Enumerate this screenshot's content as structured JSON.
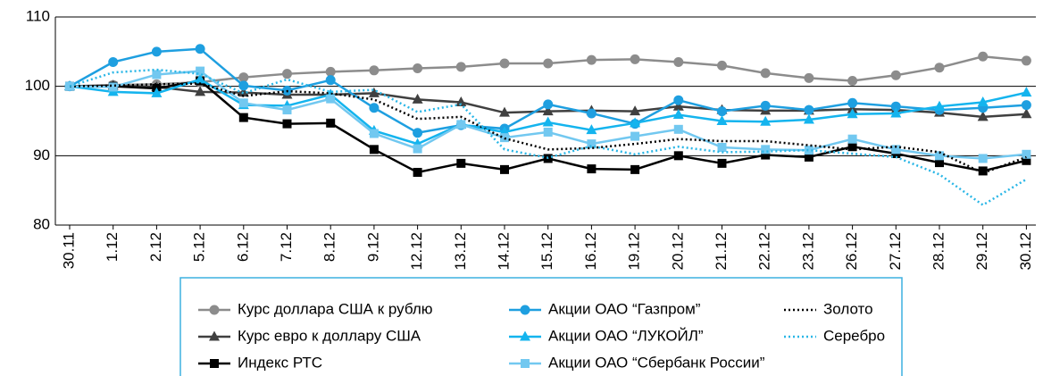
{
  "chart_data": {
    "type": "line",
    "categories": [
      "30.11",
      "1.12",
      "2.12",
      "5.12",
      "6.12",
      "7.12",
      "8.12",
      "9.12",
      "12.12",
      "13.12",
      "14.12",
      "15.12",
      "16.12",
      "19.12",
      "20.12",
      "21.12",
      "22.12",
      "23.12",
      "26.12",
      "27.12",
      "28.12",
      "29.12",
      "30.12"
    ],
    "ylim": [
      80,
      110
    ],
    "yticks": [
      80,
      90,
      100,
      110
    ],
    "grid": true,
    "series": [
      {
        "name": "Курс доллара США к рублю",
        "color": "#8c8c8c",
        "marker": "circle",
        "dash": "solid",
        "values": [
          100,
          100.2,
          100.3,
          100.6,
          101.3,
          101.8,
          102.1,
          102.3,
          102.6,
          102.8,
          103.3,
          103.3,
          103.8,
          103.9,
          103.5,
          103.0,
          101.9,
          101.2,
          100.8,
          101.6,
          102.7,
          104.3,
          103.7
        ]
      },
      {
        "name": "Курс евро к доллару США",
        "color": "#404040",
        "marker": "triangle",
        "dash": "solid",
        "values": [
          100,
          100.1,
          99.9,
          99.2,
          99.1,
          98.8,
          98.8,
          99.0,
          98.1,
          97.7,
          96.2,
          96.4,
          96.5,
          96.4,
          97.1,
          96.6,
          96.5,
          96.5,
          96.7,
          96.6,
          96.2,
          95.6,
          96.0
        ]
      },
      {
        "name": "Индекс РТС",
        "color": "#000000",
        "marker": "square",
        "dash": "solid",
        "values": [
          100,
          100,
          99.7,
          100.8,
          95.5,
          94.6,
          94.7,
          90.9,
          87.6,
          88.9,
          88.0,
          89.6,
          88.1,
          88.0,
          90.0,
          88.9,
          90.1,
          89.8,
          91.3,
          90.3,
          89.0,
          87.8,
          89.3
        ]
      },
      {
        "name": "Акции ОАО “Газпром”",
        "color": "#1e9fe0",
        "marker": "circle",
        "dash": "solid",
        "values": [
          100,
          103.5,
          105.0,
          105.4,
          100.1,
          99.4,
          100.9,
          96.9,
          93.3,
          94.4,
          93.9,
          97.4,
          96.1,
          94.6,
          98.0,
          96.4,
          97.2,
          96.6,
          97.6,
          97.1,
          96.6,
          96.9,
          97.3
        ]
      },
      {
        "name": "Акции ОАО “ЛУКОЙЛ”",
        "color": "#14b4ee",
        "marker": "triangle",
        "dash": "solid",
        "values": [
          100,
          99.2,
          99.0,
          101.0,
          97.3,
          97.2,
          98.8,
          93.6,
          91.7,
          94.5,
          93.4,
          94.8,
          93.7,
          94.7,
          95.9,
          95.0,
          94.9,
          95.2,
          96.0,
          96.1,
          97.1,
          97.7,
          99.1
        ]
      },
      {
        "name": "Акции ОАО “Сбербанк России”",
        "color": "#72c8f0",
        "marker": "square",
        "dash": "solid",
        "values": [
          100,
          99.9,
          101.7,
          102.2,
          97.6,
          96.6,
          98.2,
          93.2,
          91.0,
          94.5,
          92.6,
          93.4,
          91.7,
          92.8,
          93.8,
          91.2,
          90.9,
          90.8,
          92.4,
          90.9,
          90.0,
          89.6,
          90.2
        ]
      },
      {
        "name": "Золото",
        "color": "#000000",
        "marker": "none",
        "dash": "dotted",
        "values": [
          100,
          100.1,
          100.3,
          100.4,
          98.6,
          99.3,
          99.0,
          98.1,
          95.3,
          95.6,
          92.5,
          90.9,
          91.1,
          91.7,
          92.4,
          92.1,
          92.1,
          91.5,
          90.9,
          91.3,
          90.5,
          87.5,
          89.8
        ]
      },
      {
        "name": "Серебро",
        "color": "#29b6e6",
        "marker": "none",
        "dash": "dotted",
        "values": [
          100,
          102.0,
          102.4,
          101.8,
          99.0,
          101.0,
          99.2,
          99.5,
          96.3,
          97.4,
          90.9,
          89.7,
          91.4,
          90.2,
          91.3,
          90.5,
          90.6,
          90.8,
          90.3,
          89.8,
          87.3,
          82.9,
          86.6
        ]
      }
    ]
  }
}
